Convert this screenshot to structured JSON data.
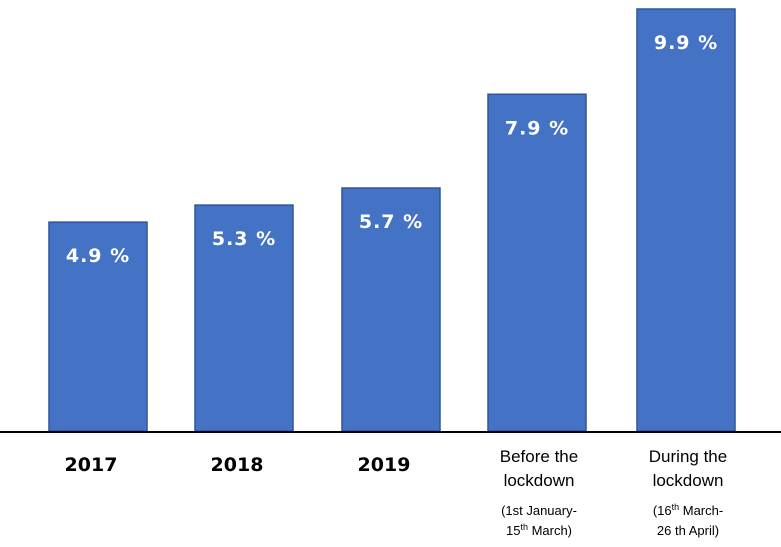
{
  "chart_data": {
    "type": "bar",
    "categories": [
      {
        "lines": [
          "2017"
        ],
        "notes": [],
        "style": "year"
      },
      {
        "lines": [
          "2018"
        ],
        "notes": [],
        "style": "year"
      },
      {
        "lines": [
          "2019"
        ],
        "notes": [],
        "style": "year"
      },
      {
        "lines": [
          "Before the",
          "lockdown"
        ],
        "notes": [
          [
            {
              "t": "(1st January-"
            }
          ],
          [
            {
              "t": "15"
            },
            {
              "t": "th",
              "sup": true
            },
            {
              "t": "  March)"
            }
          ]
        ],
        "style": "text"
      },
      {
        "lines": [
          "During the",
          "lockdown"
        ],
        "notes": [
          [
            {
              "t": "(16"
            },
            {
              "t": "th",
              "sup": true
            },
            {
              "t": " March-"
            }
          ],
          [
            {
              "t": "26 th April)"
            }
          ]
        ],
        "style": "text"
      }
    ],
    "values": [
      4.9,
      5.3,
      5.7,
      7.9,
      9.9
    ],
    "value_labels": [
      "4.9 %",
      "5.3 %",
      "5.7 %",
      "7.9 %",
      "9.9 %"
    ],
    "unit": "%",
    "ylim": [
      0,
      10
    ],
    "bar_color": "#4472C4",
    "bar_edge_color": "#2F5597",
    "axis_color": "#000000",
    "label_color": "#FFFFFF",
    "grid": false,
    "legend": "none"
  }
}
